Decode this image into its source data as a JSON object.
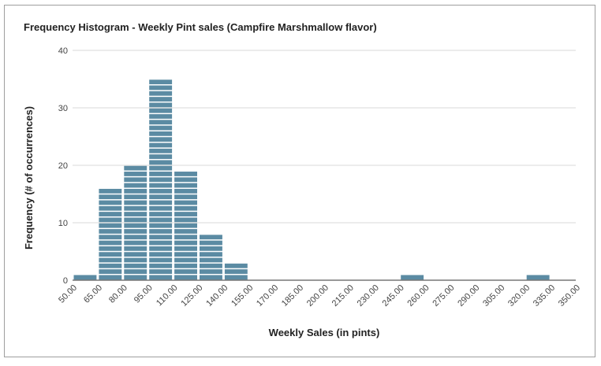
{
  "chart_data": {
    "type": "bar",
    "title": "Frequency Histogram - Weekly Pint sales (Campfire Marshmallow flavor)",
    "xlabel": "Weekly Sales (in pints)",
    "ylabel": "Frequency (# of occurrences)",
    "ylim": [
      0,
      40
    ],
    "yticks": [
      "0",
      "10",
      "20",
      "30",
      "40"
    ],
    "bin_edges": [
      "50.00",
      "65.00",
      "80.00",
      "95.00",
      "110.00",
      "125.00",
      "140.00",
      "155.00",
      "170.00",
      "185.00",
      "200.00",
      "215.00",
      "230.00",
      "245.00",
      "260.00",
      "275.00",
      "290.00",
      "305.00",
      "320.00",
      "335.00",
      "350.00"
    ],
    "categories": [
      "50.00-65.00",
      "65.00-80.00",
      "80.00-95.00",
      "95.00-110.00",
      "110.00-125.00",
      "125.00-140.00",
      "140.00-155.00",
      "155.00-170.00",
      "170.00-185.00",
      "185.00-200.00",
      "200.00-215.00",
      "215.00-230.00",
      "230.00-245.00",
      "245.00-260.00",
      "260.00-275.00",
      "275.00-290.00",
      "290.00-305.00",
      "305.00-320.00",
      "320.00-335.00",
      "335.00-350.00"
    ],
    "values": [
      1,
      16,
      20,
      35,
      19,
      8,
      3,
      0,
      0,
      0,
      0,
      0,
      0,
      1,
      0,
      0,
      0,
      0,
      1,
      0
    ],
    "grid": true,
    "legend": "none",
    "bar_color": "#5b8ba3"
  }
}
